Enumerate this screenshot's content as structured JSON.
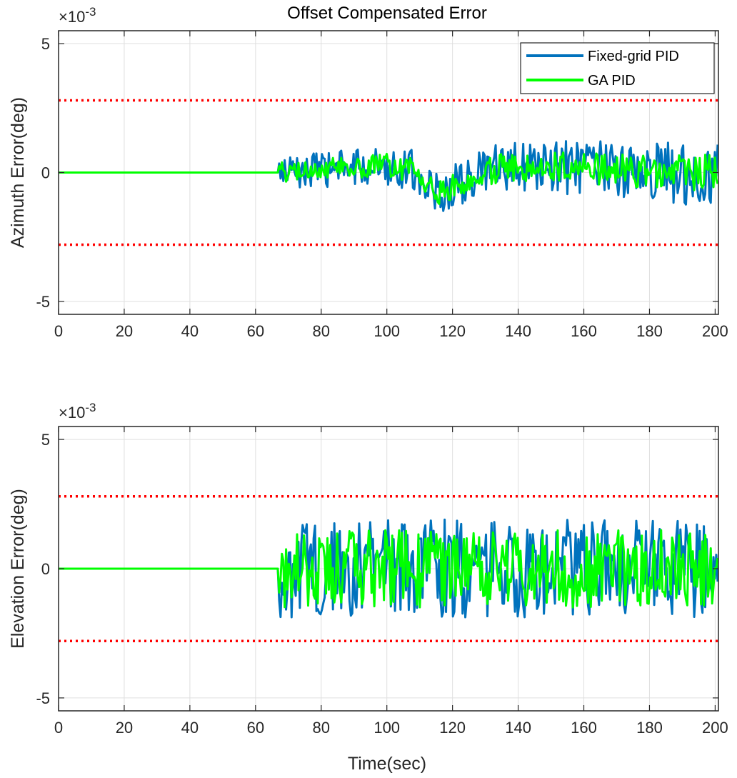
{
  "figure": {
    "title": "Offset Compensated Error",
    "xlabel": "Time(sec)"
  },
  "chart_data": [
    {
      "type": "line",
      "title": "Offset Compensated Error",
      "ylabel": "Azimuth Error(deg)",
      "xlabel": "",
      "xlim": [
        0,
        201
      ],
      "ylim": [
        -0.0055,
        0.0055
      ],
      "exponent_label": "×10",
      "exponent_power": "-3",
      "xticks": [
        0,
        20,
        40,
        60,
        80,
        100,
        120,
        140,
        160,
        180,
        200
      ],
      "xtick_labels": [
        "0",
        "20",
        "40",
        "60",
        "80",
        "100",
        "120",
        "140",
        "160",
        "180",
        "200"
      ],
      "yticks": [
        -0.005,
        0,
        0.005
      ],
      "ytick_labels": [
        "-5",
        "0",
        "5"
      ],
      "grid": true,
      "legend_position": "top-right",
      "limit_lines": [
        0.0028,
        -0.0028
      ],
      "limit_color": "#ff0000",
      "noise_start": 67,
      "series": [
        {
          "name": "Fixed-grid PID",
          "color": "#0072bd",
          "noise_amplitude": [
            0.0006,
            0.0013
          ],
          "trend_x": [
            0,
            67,
            80,
            100,
            108,
            116,
            124,
            135,
            150,
            170,
            190,
            201
          ],
          "trend_y": [
            0,
            0,
            0.0001,
            0.0003,
            0.0001,
            -0.0009,
            -0.0003,
            0.0002,
            0.0002,
            0.0001,
            0,
            0
          ]
        },
        {
          "name": "GA PID",
          "color": "#00ff00",
          "noise_amplitude": [
            0.0004,
            0.0007
          ],
          "trend_x": [
            0,
            67,
            80,
            100,
            108,
            116,
            124,
            135,
            150,
            170,
            190,
            201
          ],
          "trend_y": [
            0,
            0,
            0.0001,
            0.0003,
            0.0001,
            -0.0008,
            -0.0003,
            0.0002,
            0.0002,
            0.0001,
            0,
            0
          ]
        }
      ]
    },
    {
      "type": "line",
      "title": "",
      "ylabel": "Elevation Error(deg)",
      "xlabel": "Time(sec)",
      "xlim": [
        0,
        201
      ],
      "ylim": [
        -0.0055,
        0.0055
      ],
      "exponent_label": "×10",
      "exponent_power": "-3",
      "xticks": [
        0,
        20,
        40,
        60,
        80,
        100,
        120,
        140,
        160,
        180,
        200
      ],
      "xtick_labels": [
        "0",
        "20",
        "40",
        "60",
        "80",
        "100",
        "120",
        "140",
        "160",
        "180",
        "200"
      ],
      "yticks": [
        -0.005,
        0,
        0.005
      ],
      "ytick_labels": [
        "-5",
        "0",
        "5"
      ],
      "grid": true,
      "legend_position": "",
      "limit_lines": [
        0.0028,
        -0.0028
      ],
      "limit_color": "#ff0000",
      "noise_start": 67,
      "series": [
        {
          "name": "Fixed-grid PID",
          "color": "#0072bd",
          "noise_amplitude": [
            0.0019,
            0.0019
          ],
          "trend_x": [
            0,
            67,
            201
          ],
          "trend_y": [
            0,
            0,
            0
          ]
        },
        {
          "name": "GA PID",
          "color": "#00ff00",
          "noise_amplitude": [
            0.0015,
            0.0015
          ],
          "trend_x": [
            0,
            67,
            201
          ],
          "trend_y": [
            0,
            0,
            0
          ]
        }
      ]
    }
  ]
}
